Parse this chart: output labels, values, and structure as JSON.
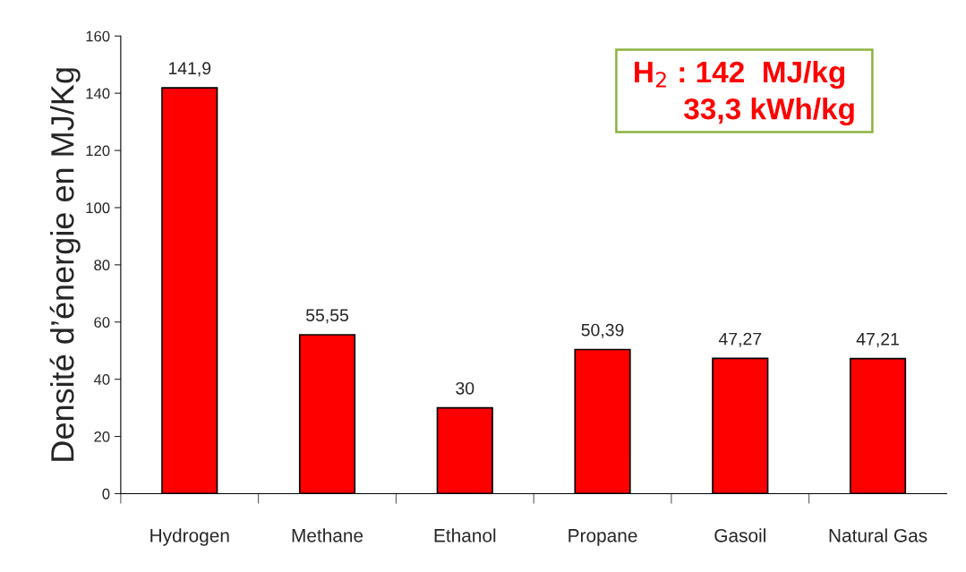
{
  "chart_data": {
    "type": "bar",
    "ylabel": "Densité d’énergie en MJ/Kg",
    "categories": [
      "Hydrogen",
      "Methane",
      "Ethanol",
      "Propane",
      "Gasoil",
      "Natural Gas"
    ],
    "values": [
      141.9,
      55.55,
      30,
      50.39,
      47.27,
      47.21
    ],
    "value_labels": [
      "141,9",
      "55,55",
      "30",
      "50,39",
      "47,27",
      "47,21"
    ],
    "color": "#ff0000",
    "ylim": [
      0,
      160
    ],
    "yticks": [
      0,
      20,
      40,
      60,
      80,
      100,
      120,
      140,
      160
    ],
    "grid": false,
    "legend": false,
    "annotations": [
      "H$_{2}$ : 142  MJ/kg",
      "33,3 kWh/kg"
    ]
  }
}
